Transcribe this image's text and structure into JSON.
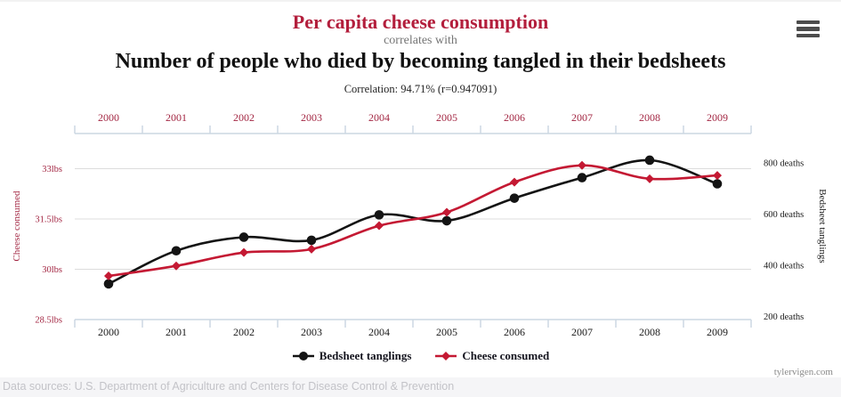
{
  "header": {
    "title_red": "Per capita cheese consumption",
    "connector": "correlates with",
    "title_black": "Number of people who died by becoming tangled in their bedsheets",
    "correlation_note": "Correlation: 94.71% (r=0.947091)"
  },
  "icons": {
    "menu": "hamburger-menu"
  },
  "colors": {
    "title_red": "#b31e3c",
    "red_text": "#a32743",
    "series_red": "#c41933",
    "series_black": "#141414",
    "axis_line": "#ccd7e2",
    "gridline": "#dcdcdc"
  },
  "chart_data": {
    "type": "line",
    "title": "Per capita cheese consumption correlates with Number of people who died by becoming tangled in their bedsheets",
    "x": [
      2000,
      2001,
      2002,
      2003,
      2004,
      2005,
      2006,
      2007,
      2008,
      2009
    ],
    "series": [
      {
        "name": "Bedsheet tanglings",
        "axis": "right",
        "color": "#141414",
        "marker": "circle",
        "values": [
          327,
          456,
          509,
          497,
          596,
          573,
          661,
          741,
          809,
          717
        ]
      },
      {
        "name": "Cheese consumed",
        "axis": "left",
        "color": "#c41933",
        "marker": "diamond",
        "values": [
          29.8,
          30.1,
          30.5,
          30.6,
          31.3,
          31.7,
          32.6,
          33.1,
          32.7,
          32.8
        ]
      }
    ],
    "left_axis": {
      "title": "Cheese consumed",
      "range": [
        28.5,
        34.05
      ],
      "ticks": [
        {
          "value": 33,
          "label": "33lbs"
        },
        {
          "value": 31.5,
          "label": "31.5lbs"
        },
        {
          "value": 30,
          "label": "30lbs"
        },
        {
          "value": 28.5,
          "label": "28.5lbs"
        }
      ],
      "text_color": "#a32743"
    },
    "right_axis": {
      "title": "Bedsheet tanglings",
      "range": [
        188,
        913
      ],
      "ticks": [
        {
          "value": 800,
          "label": "800 deaths"
        },
        {
          "value": 600,
          "label": "600 deaths"
        },
        {
          "value": 400,
          "label": "400 deaths"
        },
        {
          "value": 200,
          "label": "200 deaths"
        }
      ],
      "text_color": "#1a1a1a"
    },
    "grid": true,
    "legend_position": "bottom"
  },
  "footer": {
    "site": "tylervigen.com",
    "data_sources": "Data sources: U.S. Department of Agriculture and Centers for Disease Control & Prevention"
  }
}
